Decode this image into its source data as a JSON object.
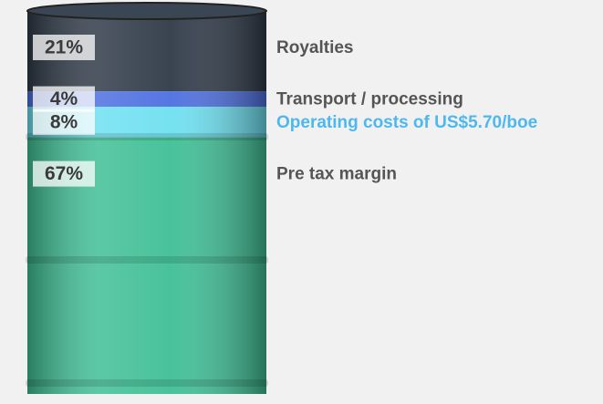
{
  "chart_data": {
    "type": "bar",
    "series": [
      {
        "name": "Royalties",
        "color": "#2f3a48",
        "values": [
          21
        ],
        "value_labels": [
          "21%"
        ]
      },
      {
        "name": "Transport / processing",
        "color": "#4d6fe0",
        "values": [
          4
        ],
        "value_labels": [
          "4%"
        ]
      },
      {
        "name": "Operating costs of US$5.70/boe",
        "color": "#6ee0f0",
        "values": [
          8
        ],
        "value_labels": [
          "8%"
        ]
      },
      {
        "name": "Pre tax margin",
        "color": "#3fbf95",
        "values": [
          67
        ],
        "value_labels": [
          "67%"
        ]
      }
    ],
    "ylim": [
      0,
      100
    ]
  }
}
